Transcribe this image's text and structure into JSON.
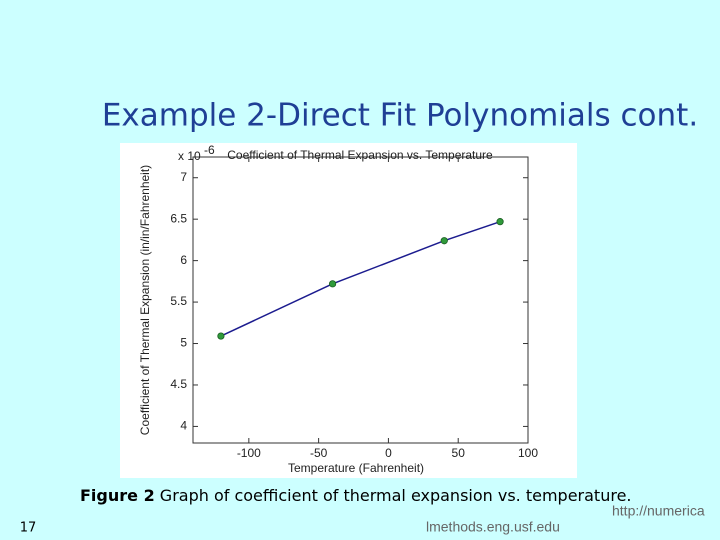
{
  "slide": {
    "title": "Example 2-Direct Fit Polynomials cont.",
    "caption_label": "Figure 2",
    "caption_text": "Graph of coefficient of thermal expansion vs. temperature.",
    "page_number": "17",
    "footer_url": "http://numerica",
    "footer_site": "lmethods.eng.usf.edu"
  },
  "chart_data": {
    "type": "line",
    "title": "Coefficient of Thermal Expansion vs. Temperature",
    "x_label": "Temperature (Fahrenheit)",
    "y_label": "Coefficient of Thermal Expansion (in/in/Fahrenheit)",
    "y_multiplier": "x 10",
    "y_multiplier_exponent": "-6",
    "x": [
      -120,
      -40,
      40,
      80
    ],
    "series": [
      {
        "name": "Coefficient of Thermal Expansion",
        "line_color": "#1c1c8f",
        "marker_color": "#2f9a3a",
        "values": [
          5.09,
          5.72,
          6.24,
          6.47
        ]
      }
    ],
    "xlim": [
      -140,
      100
    ],
    "xticks": [
      -100,
      -50,
      0,
      50,
      100
    ],
    "ylim": [
      3.8,
      7.25
    ],
    "yticks": [
      4,
      4.5,
      5,
      5.5,
      6,
      6.5,
      7
    ],
    "grid": false
  }
}
